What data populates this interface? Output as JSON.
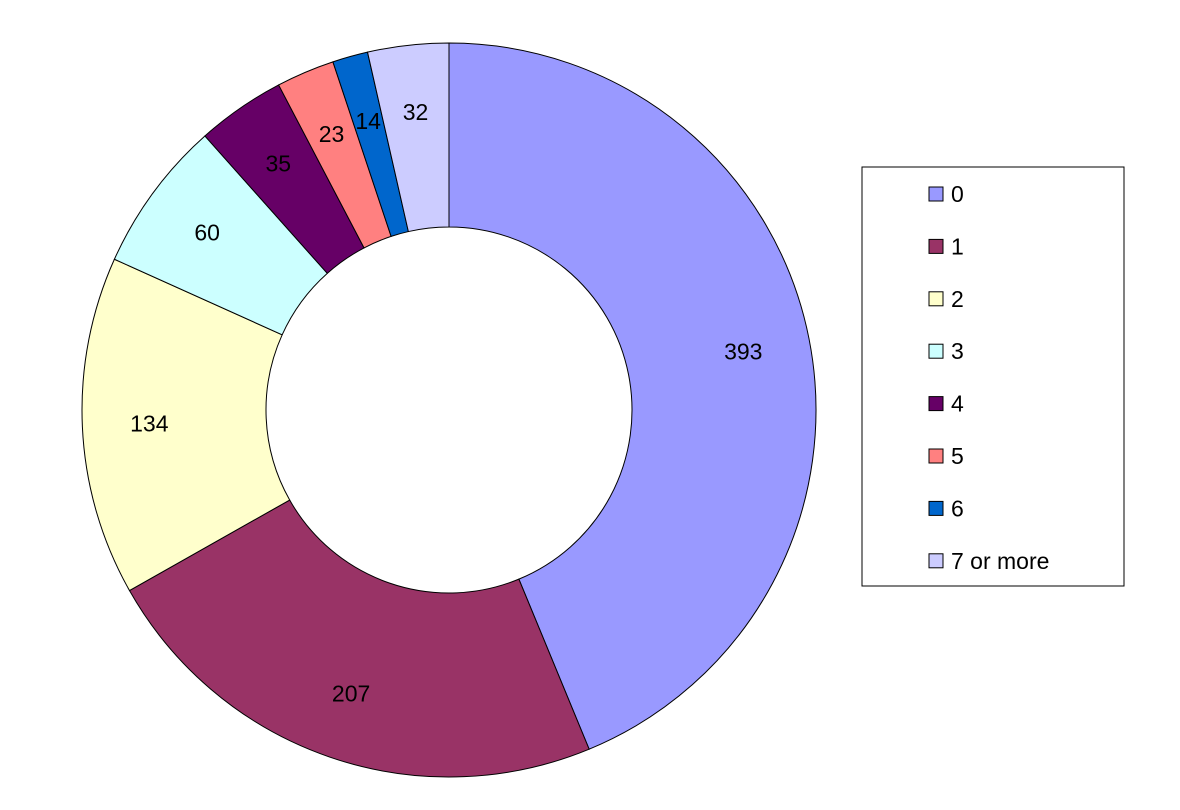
{
  "chart_data": {
    "type": "pie",
    "variant": "donut",
    "categories": [
      "0",
      "1",
      "2",
      "3",
      "4",
      "5",
      "6",
      "7 or more"
    ],
    "values": [
      393,
      207,
      134,
      60,
      35,
      23,
      14,
      32
    ],
    "colors": [
      "#9999FF",
      "#993366",
      "#FFFFCC",
      "#CCFFFF",
      "#660066",
      "#FF8080",
      "#0066CC",
      "#CCCCFF"
    ],
    "data_labels": [
      "393",
      "207",
      "134",
      "60",
      "35",
      "23",
      "14",
      "32"
    ],
    "legend_placement": "right",
    "title": "",
    "start_angle": "12 o'clock, clockwise"
  }
}
